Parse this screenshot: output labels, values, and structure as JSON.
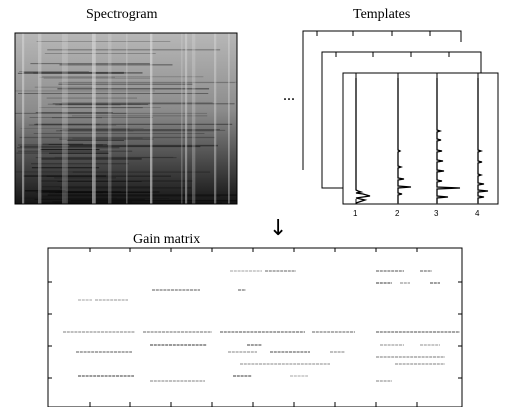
{
  "spectrogram": {
    "title": "Spectrogram"
  },
  "templates": {
    "title": "Templates",
    "ellipsis": "...",
    "tick_labels": [
      "1",
      "2",
      "3",
      "4"
    ]
  },
  "arrow": {
    "symbol": "↓"
  },
  "gain": {
    "title": "Gain matrix"
  }
}
